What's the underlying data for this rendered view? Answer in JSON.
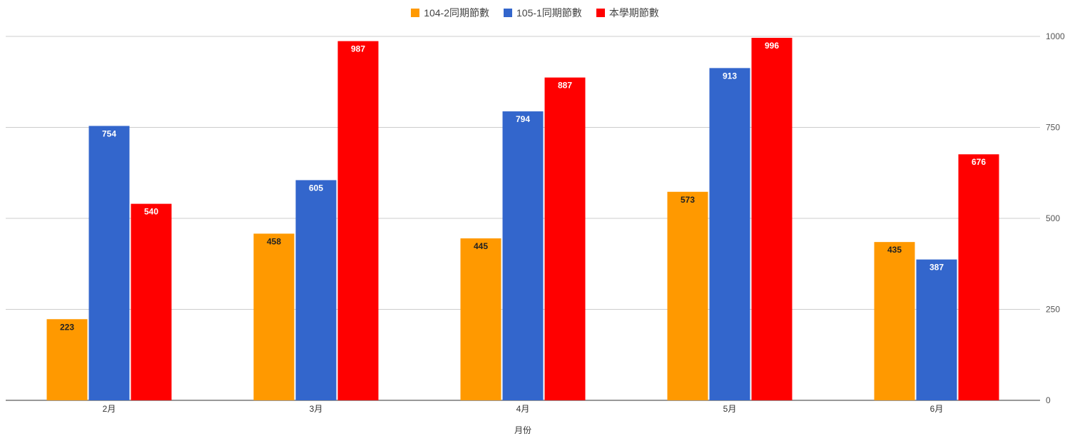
{
  "chart_data": {
    "type": "bar",
    "title": "",
    "xlabel": "月份",
    "ylabel": "",
    "categories": [
      "2月",
      "3月",
      "4月",
      "5月",
      "6月"
    ],
    "ylim": [
      0,
      1000
    ],
    "yticks": [
      0,
      250,
      500,
      750,
      1000
    ],
    "grid": true,
    "legend_position": "top",
    "axis_position": "right",
    "series": [
      {
        "name": "104-2同期節數",
        "color": "#ff9900",
        "label_color": "#222222",
        "values": [
          223,
          458,
          445,
          573,
          435
        ]
      },
      {
        "name": "105-1同期節數",
        "color": "#3366cc",
        "label_color": "#ffffff",
        "values": [
          754,
          605,
          794,
          913,
          387
        ]
      },
      {
        "name": "本學期節數",
        "color": "#ff0000",
        "label_color": "#ffffff",
        "values": [
          540,
          987,
          887,
          996,
          676
        ]
      }
    ]
  }
}
